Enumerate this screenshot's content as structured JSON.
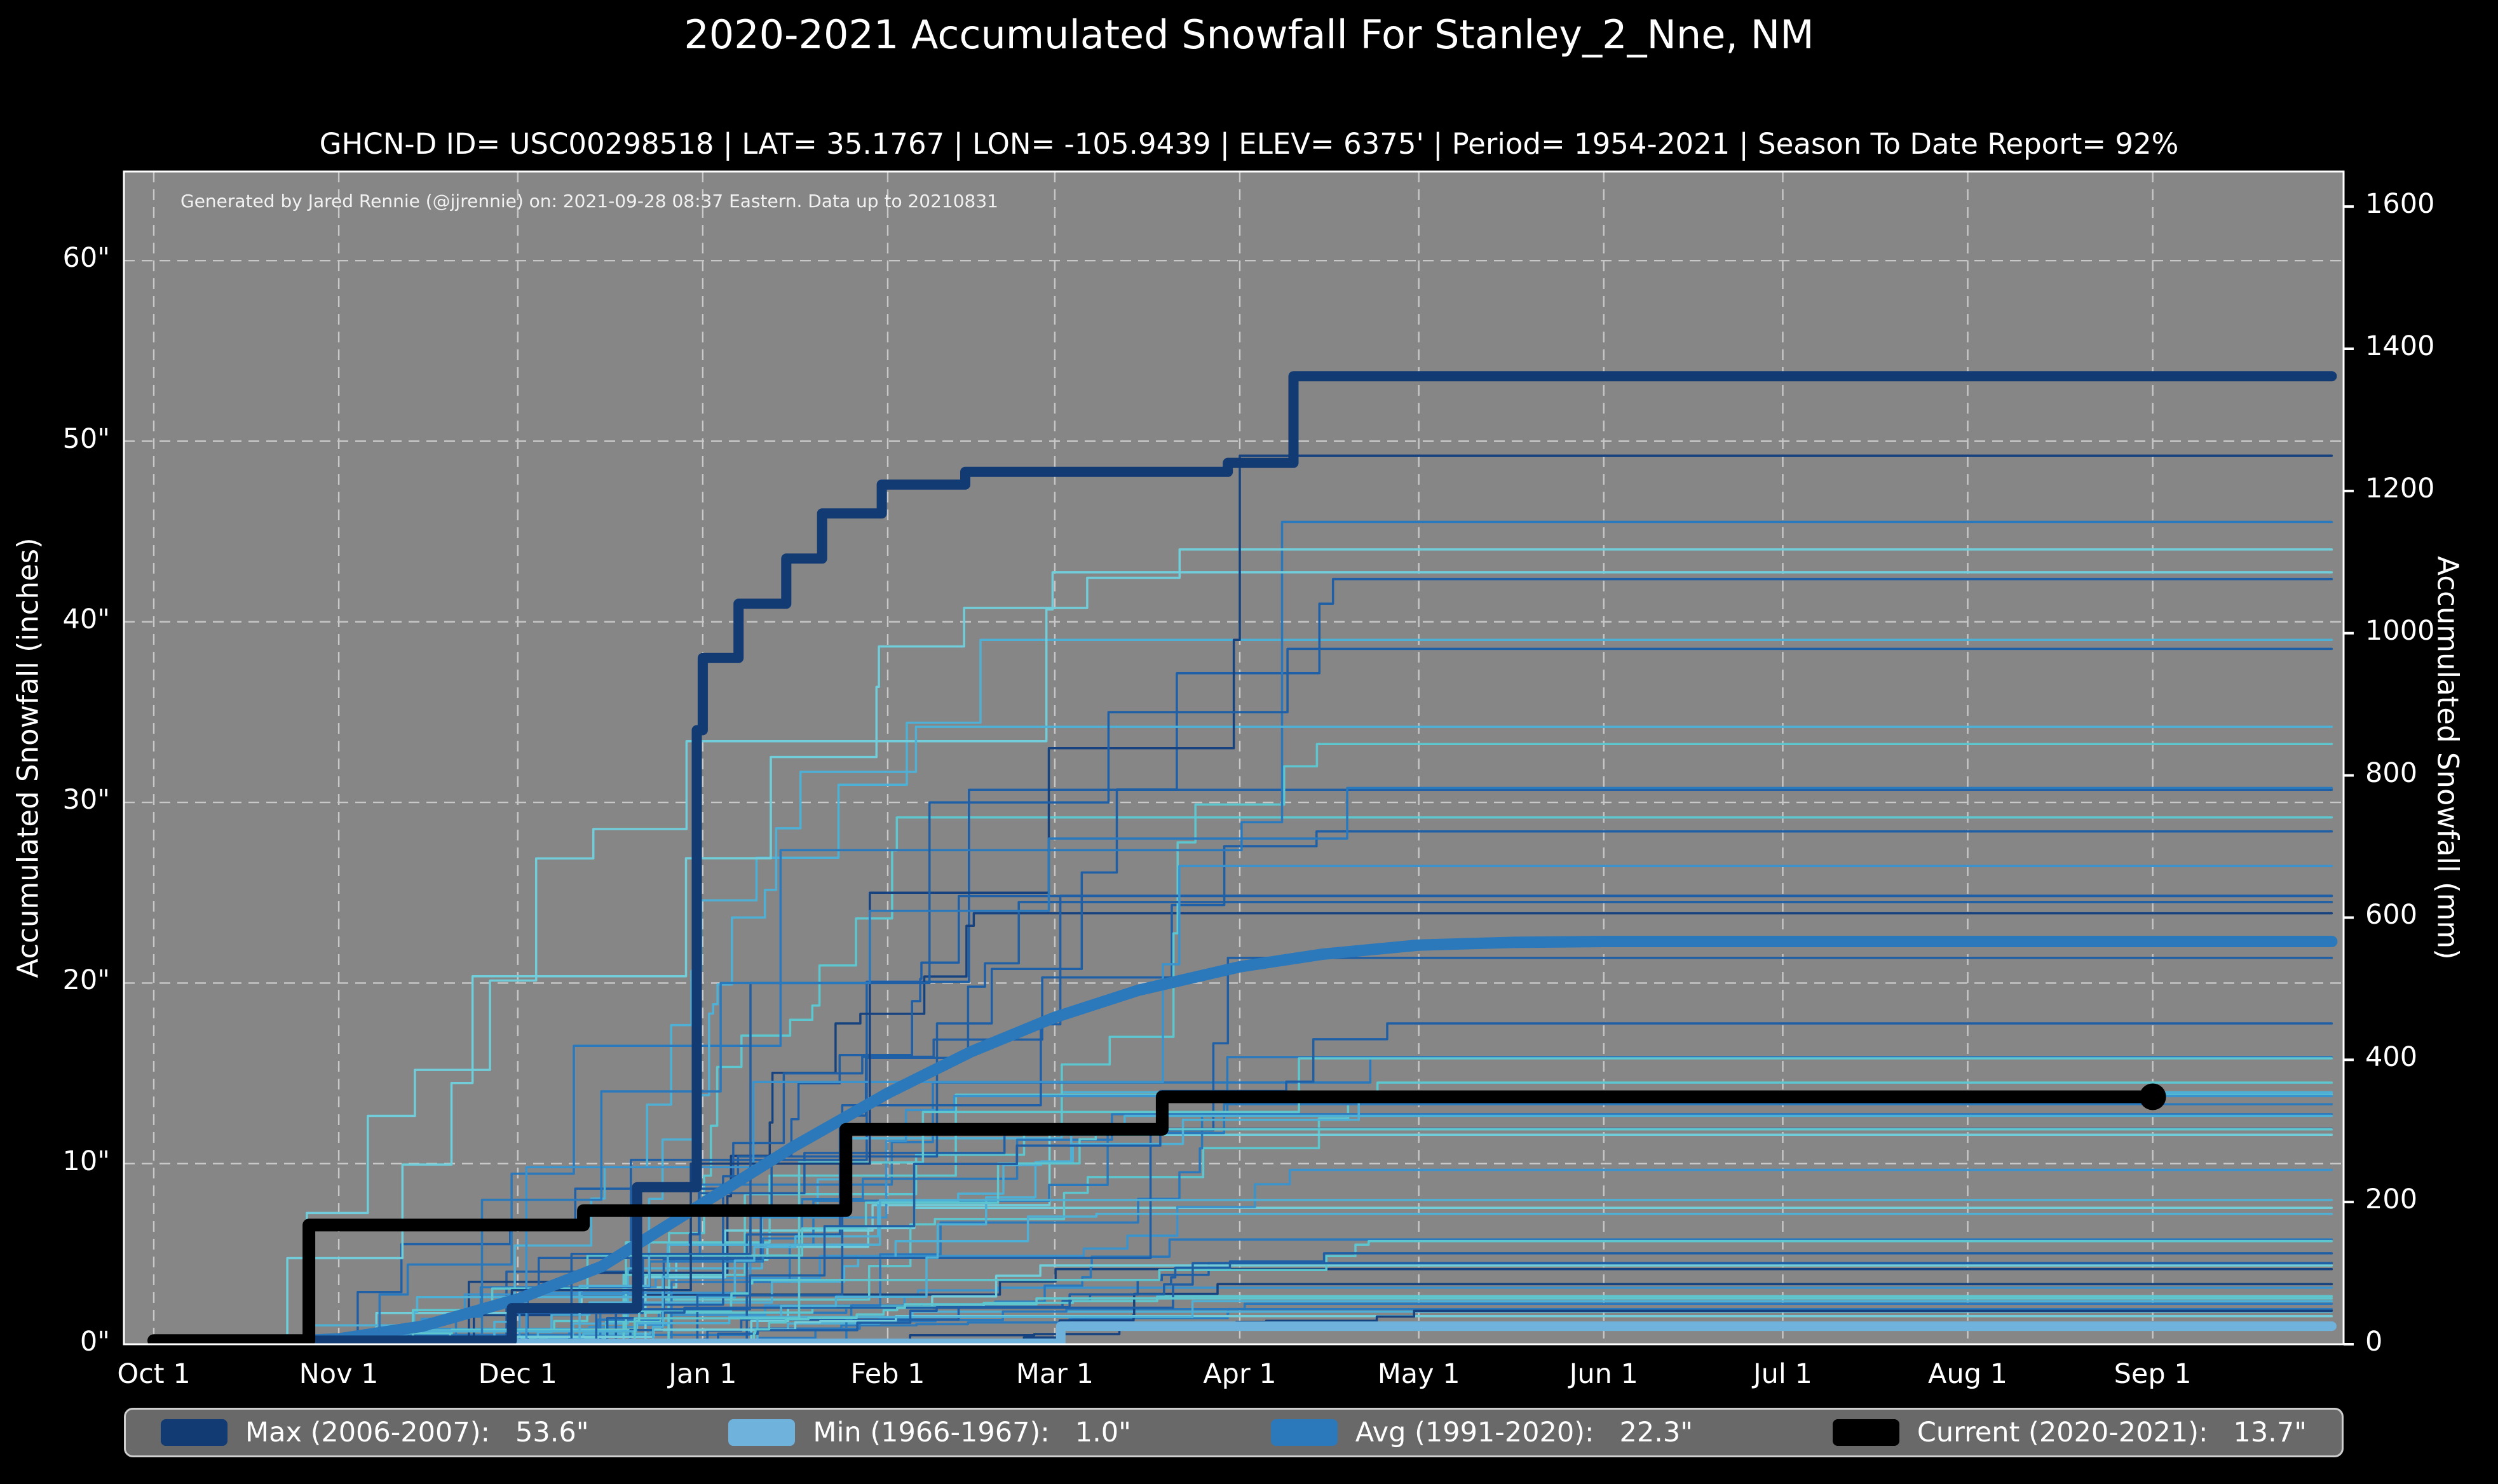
{
  "title": "2020-2021 Accumulated Snowfall For Stanley_2_Nne, NM",
  "subtitle": "GHCN-D ID= USC00298518 | LAT= 35.1767 | LON= -105.9439 | ELEV= 6375' | Period= 1954-2021 | Season To Date Report= 92%",
  "annotation": "Generated by Jared Rennie (@jjrennie) on: 2021-09-28 08:37 Eastern. Data up to 20210831",
  "axis_titles": {
    "left": "Accumulated Snowfall (inches)",
    "right": "Accumulated Snowfall (mm)"
  },
  "colors": {
    "page_background": "#000000",
    "plot_background": "#868686",
    "grid": "#d9d9d9",
    "spine": "#ffffff",
    "text": "#ffffff",
    "annotation_text": "#f1f1f1",
    "legend_background": "#696969",
    "legend_border": "#cfcfcf",
    "max_line": "#123a73",
    "min_line": "#6fb2dc",
    "avg_line": "#2b78bb",
    "current_line": "#000000"
  },
  "legend": [
    {
      "key": "max",
      "label": "Max (2006-2007):",
      "value": "53.6\"",
      "color": "#123a73"
    },
    {
      "key": "min",
      "label": "Min (1966-1967):",
      "value": "1.0\"",
      "color": "#6fb2dc"
    },
    {
      "key": "avg",
      "label": "Avg (1991-2020):",
      "value": "22.3\"",
      "color": "#2b78bb"
    },
    {
      "key": "current",
      "label": "Current (2020-2021):",
      "value": "13.7\"",
      "color": "#000000"
    }
  ],
  "chart_data": {
    "type": "line",
    "title": "2020-2021 Accumulated Snowfall For Stanley_2_Nne, NM",
    "x_axis": {
      "unit": "days since Oct 1",
      "tick_labels": [
        "Oct 1",
        "Nov 1",
        "Dec 1",
        "Jan 1",
        "Feb 1",
        "Mar 1",
        "Apr 1",
        "May 1",
        "Jun 1",
        "Jul 1",
        "Aug 1",
        "Sep 1"
      ],
      "tick_days": [
        0,
        31,
        61,
        92,
        123,
        151,
        182,
        212,
        243,
        273,
        304,
        335
      ],
      "domain_days": [
        -5,
        367
      ]
    },
    "y_axis_left": {
      "label": "Accumulated Snowfall (inches)",
      "tick_labels": [
        "0\"",
        "10\"",
        "20\"",
        "30\"",
        "40\"",
        "50\"",
        "60\""
      ],
      "tick_values": [
        0,
        10,
        20,
        30,
        40,
        50,
        60
      ],
      "domain": [
        0,
        64.9
      ]
    },
    "y_axis_right": {
      "label": "Accumulated Snowfall (mm)",
      "tick_values": [
        0,
        200,
        400,
        600,
        800,
        1000,
        1200,
        1400,
        1600
      ],
      "conversion": "mm = inches * 25.4"
    },
    "grid": "dashed, both axes",
    "legend_position": "bottom",
    "series": [
      {
        "name": "Max (2006-2007)",
        "total": "53.6\"",
        "color": "#123a73",
        "width": 16,
        "style": "step",
        "points": [
          [
            0,
            0
          ],
          [
            25,
            0.2
          ],
          [
            60,
            2.0
          ],
          [
            81,
            8.7
          ],
          [
            91,
            34.0
          ],
          [
            92,
            38.0
          ],
          [
            98,
            41.0
          ],
          [
            106,
            43.5
          ],
          [
            112,
            46.0
          ],
          [
            122,
            47.6
          ],
          [
            136,
            48.3
          ],
          [
            180,
            48.8
          ],
          [
            191,
            53.6
          ],
          [
            365,
            53.6
          ]
        ]
      },
      {
        "name": "Min (1966-1967)",
        "total": "1.0\"",
        "color": "#6fb2dc",
        "width": 15,
        "style": "step",
        "points": [
          [
            0,
            0.05
          ],
          [
            152,
            1.0
          ],
          [
            365,
            1.0
          ]
        ]
      },
      {
        "name": "Avg (1991-2020)",
        "total": "22.3\"",
        "color": "#2b78bb",
        "width": 18,
        "style": "smooth",
        "points": [
          [
            0,
            0
          ],
          [
            15,
            0.05
          ],
          [
            31,
            0.3
          ],
          [
            45,
            1.0
          ],
          [
            61,
            2.5
          ],
          [
            75,
            4.3
          ],
          [
            92,
            7.8
          ],
          [
            107,
            10.9
          ],
          [
            123,
            13.9
          ],
          [
            137,
            16.2
          ],
          [
            151,
            18.1
          ],
          [
            165,
            19.6
          ],
          [
            182,
            20.9
          ],
          [
            196,
            21.6
          ],
          [
            212,
            22.1
          ],
          [
            228,
            22.25
          ],
          [
            243,
            22.3
          ],
          [
            365,
            22.3
          ]
        ]
      },
      {
        "name": "Current (2020-2021)",
        "total": "13.7\"",
        "color": "#000000",
        "width": 20,
        "style": "step",
        "end_dot_day": 335,
        "end_dot_radius": 21,
        "points": [
          [
            0,
            0.2
          ],
          [
            26,
            6.6
          ],
          [
            72,
            7.4
          ],
          [
            116,
            11.9
          ],
          [
            169,
            13.7
          ],
          [
            335,
            13.7
          ]
        ]
      }
    ],
    "background_seasons": {
      "note": "Approximately 65 thin step-traces, one per season 1954-2021, in shades of blue/cyan; most finish between 2 and 35 inches, a few reach 35-49 inches. Values below are generator parameters approximating the unlabeled traces.",
      "count": 52,
      "seed": 42,
      "width": 3.5,
      "palette": [
        "#16437f",
        "#1f5fa6",
        "#2a79bd",
        "#3b93cd",
        "#4fb0d6",
        "#5ec6cf",
        "#70cdd9"
      ],
      "final_range": [
        1.5,
        46
      ],
      "skew": 2.2,
      "start_day_range": [
        15,
        80
      ],
      "finish_day_range": [
        135,
        215
      ],
      "steps_range": [
        4,
        13
      ],
      "extra": [
        {
          "color": "#16437f",
          "points": [
            [
              0,
              0
            ],
            [
              60,
              3
            ],
            [
              90,
              10
            ],
            [
              120,
              25
            ],
            [
              150,
              33
            ],
            [
              181,
              39
            ],
            [
              182,
              49.2
            ],
            [
              365,
              49.2
            ]
          ]
        },
        {
          "color": "#1f5fa6",
          "points": [
            [
              0,
              0
            ],
            [
              70,
              5
            ],
            [
              100,
              20
            ],
            [
              130,
              30
            ],
            [
              160,
              35
            ],
            [
              190,
              38.5
            ],
            [
              365,
              38.5
            ]
          ]
        },
        {
          "color": "#2a79bd",
          "points": [
            [
              0,
              0
            ],
            [
              55,
              8
            ],
            [
              75,
              14
            ],
            [
              95,
              20
            ],
            [
              120,
              24
            ],
            [
              150,
              28
            ],
            [
              200,
              30.8
            ],
            [
              365,
              30.8
            ]
          ]
        }
      ]
    }
  }
}
